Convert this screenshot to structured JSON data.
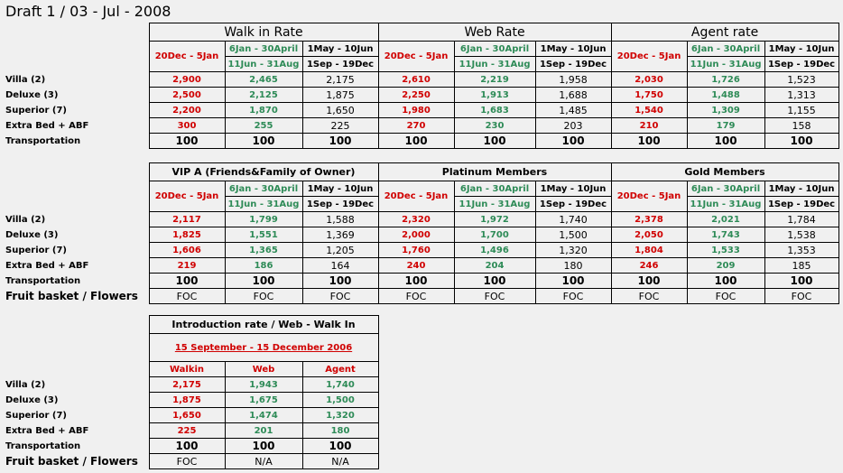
{
  "title": "Draft 1 / 03 - Jul - 2008",
  "season_headers": {
    "high": "20Dec - 5Jan",
    "mid_top": "6Jan - 30April",
    "mid_bottom": "11Jun - 31Aug",
    "low_top": "1May - 10Jun",
    "low_bottom": "1Sep - 19Dec"
  },
  "row_labels": {
    "villa": "Villa (2)",
    "deluxe": "Deluxe (3)",
    "superior": "Superior (7)",
    "extra": "Extra Bed + ABF",
    "transport": "Transportation",
    "fruit": "Fruit basket / Flowers"
  },
  "table1": {
    "groups": [
      "Walk in Rate",
      "Web Rate",
      "Agent rate"
    ],
    "rows": {
      "villa": [
        "2,900",
        "2,465",
        "2,175",
        "2,610",
        "2,219",
        "1,958",
        "2,030",
        "1,726",
        "1,523"
      ],
      "deluxe": [
        "2,500",
        "2,125",
        "1,875",
        "2,250",
        "1,913",
        "1,688",
        "1,750",
        "1,488",
        "1,313"
      ],
      "superior": [
        "2,200",
        "1,870",
        "1,650",
        "1,980",
        "1,683",
        "1,485",
        "1,540",
        "1,309",
        "1,155"
      ],
      "extra": [
        "300",
        "255",
        "225",
        "270",
        "230",
        "203",
        "210",
        "179",
        "158"
      ],
      "transport": [
        "100",
        "100",
        "100",
        "100",
        "100",
        "100",
        "100",
        "100",
        "100"
      ]
    }
  },
  "table2": {
    "groups": [
      "VIP A (Friends&Family of Owner)",
      "Platinum Members",
      "Gold Members"
    ],
    "rows": {
      "villa": [
        "2,117",
        "1,799",
        "1,588",
        "2,320",
        "1,972",
        "1,740",
        "2,378",
        "2,021",
        "1,784"
      ],
      "deluxe": [
        "1,825",
        "1,551",
        "1,369",
        "2,000",
        "1,700",
        "1,500",
        "2,050",
        "1,743",
        "1,538"
      ],
      "superior": [
        "1,606",
        "1,365",
        "1,205",
        "1,760",
        "1,496",
        "1,320",
        "1,804",
        "1,533",
        "1,353"
      ],
      "extra": [
        "219",
        "186",
        "164",
        "240",
        "204",
        "180",
        "246",
        "209",
        "185"
      ],
      "transport": [
        "100",
        "100",
        "100",
        "100",
        "100",
        "100",
        "100",
        "100",
        "100"
      ],
      "fruit": [
        "FOC",
        "FOC",
        "FOC",
        "FOC",
        "FOC",
        "FOC",
        "FOC",
        "FOC",
        "FOC"
      ]
    }
  },
  "table3": {
    "title": "Introduction rate / Web - Walk In",
    "date_range": "15 September - 15 December 2006",
    "columns": [
      "Walkin",
      "Web",
      "Agent"
    ],
    "rows": {
      "villa": [
        "2,175",
        "1,943",
        "1,740"
      ],
      "deluxe": [
        "1,875",
        "1,675",
        "1,500"
      ],
      "superior": [
        "1,650",
        "1,474",
        "1,320"
      ],
      "extra": [
        "225",
        "201",
        "180"
      ],
      "transport": [
        "100",
        "100",
        "100"
      ],
      "fruit": [
        "FOC",
        "N/A",
        "N/A"
      ]
    }
  },
  "colors": {
    "red": "#d00000",
    "green": "#2e8b57"
  }
}
